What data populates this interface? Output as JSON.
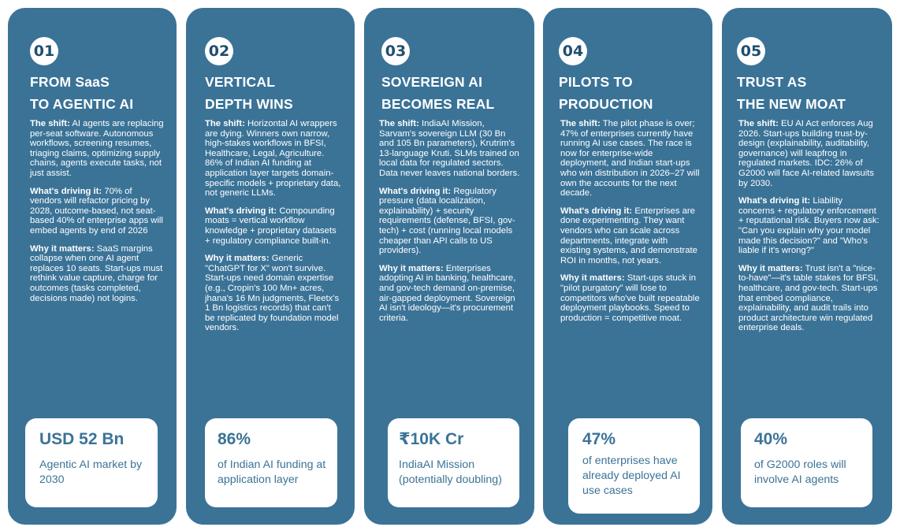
{
  "cards": [
    {
      "number": "01",
      "title": [
        "FROM SaaS",
        "TO AGENTIC AI"
      ],
      "sections": [
        {
          "label": "The shift:",
          "text": " AI agents are replacing per-seat software. Autonomous workflows, screening resumes, triaging claims, optimizing supply chains, agents execute tasks, not just assist."
        },
        {
          "label": "What's driving it:",
          "text": "  70% of vendors will refactor pricing by 2028, outcome-based, not seat-based 40% of enterprise apps will embed agents by end of 2026"
        },
        {
          "label": "Why it matters:",
          "text": " SaaS margins collapse when one AI agent replaces 10 seats. Start-ups must rethink value capture, charge for outcomes (tasks completed, decisions made) not logins."
        }
      ],
      "stat": {
        "value": "USD 52 Bn",
        "desc": "Agentic AI market by 2030"
      }
    },
    {
      "number": "02",
      "title": [
        "VERTICAL",
        "DEPTH WINS"
      ],
      "sections": [
        {
          "label": "The shift:",
          "text": " Horizontal AI wrappers are dying. Winners own narrow, high-stakes workflows in BFSI, Healthcare, Legal, Agriculture. 86% of Indian AI funding at application layer targets domain-specific models + proprietary data, not generic LLMs."
        },
        {
          "label": "What's driving it:",
          "text": " Compounding moats = vertical workflow knowledge + proprietary datasets + regulatory compliance built-in."
        },
        {
          "label": "Why it matters:",
          "text": " Generic \"ChatGPT for X\" won't survive. Start-ups need domain expertise (e.g., Cropin's 100 Mn+ acres, jhana's 16 Mn judgments, Fleetx's 1 Bn logistics records) that can't be replicated by foundation model vendors."
        }
      ],
      "stat": {
        "value": "86%",
        "desc": "of Indian AI funding at application layer"
      }
    },
    {
      "number": "03",
      "title": [
        "SOVEREIGN AI",
        "BECOMES REAL"
      ],
      "sections": [
        {
          "label": "The shift:",
          "text": " IndiaAI Mission, Sarvam's sovereign LLM (30 Bn and 105 Bn parameters), Krutrim's 13-language Kruti. SLMs trained on local data for regulated sectors. Data never leaves national borders."
        },
        {
          "label": "What's driving it:",
          "text": " Regulatory pressure (data localization, explainability) + security requirements (defense, BFSI, gov-tech) + cost (running local models cheaper than API calls to US providers)."
        },
        {
          "label": "Why it matters:",
          "text": " Enterprises adopting AI in banking, healthcare, and gov-tech demand on-premise, air-gapped deployment. Sovereign AI isn't ideology—it's procurement criteria."
        }
      ],
      "stat": {
        "value": "₹10K Cr",
        "desc": "IndiaAI Mission (potentially doubling)"
      }
    },
    {
      "number": "04",
      "title": [
        "PILOTS TO",
        "PRODUCTION"
      ],
      "sections": [
        {
          "label": "The shift:",
          "text": " The pilot phase is over; 47% of enterprises currently have running AI use cases. The race is now for enterprise-wide deployment, and Indian start-ups who win distribution in 2026–27 will own the accounts for the next decade."
        },
        {
          "label": "What's driving it:",
          "text": " Enterprises are done experimenting. They want vendors who can scale across departments, integrate with existing systems, and demonstrate ROI in months, not years."
        },
        {
          "label": "Why it matters:",
          "text": " Start-ups stuck in \"pilot purgatory\" will lose to competitors who've built repeatable deployment playbooks. Speed to production = competitive moat."
        }
      ],
      "stat": {
        "value": "47%",
        "desc": "of enterprises have already deployed AI use cases"
      }
    },
    {
      "number": "05",
      "title": [
        "TRUST AS",
        "THE NEW MOAT"
      ],
      "sections": [
        {
          "label": "The shift:",
          "text": " EU AI Act enforces Aug 2026. Start-ups building trust-by-design (explainability, auditability, governance) will leapfrog in regulated markets. IDC: 26% of G2000 will face AI-related lawsuits by 2030."
        },
        {
          "label": "What's driving it:",
          "text": " Liability concerns + regulatory enforcement + reputational risk. Buyers now ask: \"Can you explain why your model made this decision?\" and \"Who's liable if it's wrong?\""
        },
        {
          "label": "Why it matters:",
          "text": " Trust isn't a \"nice-to-have\"—it's table stakes for BFSI, healthcare, and gov-tech. Start-ups that embed compliance, explainability, and audit trails into product architecture win regulated enterprise deals."
        }
      ],
      "stat": {
        "value": "40%",
        "desc": "of G2000 roles will involve AI agents"
      }
    }
  ],
  "colors": {
    "card_background": "#3b7397",
    "card_text": "#ffffff",
    "stat_text": "#3b7397",
    "number_text": "#1f4f6e"
  }
}
